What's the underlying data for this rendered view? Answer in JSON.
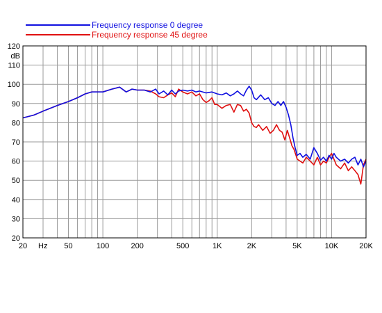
{
  "chart_data": {
    "type": "line",
    "x_scale": "log",
    "xlim": [
      20,
      20000
    ],
    "ylim": [
      20,
      120
    ],
    "ylabel": "dB",
    "xlabel": "Hz",
    "grid": true,
    "legend_position": "top",
    "x_ticks": [
      {
        "value": 20,
        "label": "20"
      },
      {
        "value": 50,
        "label": "50"
      },
      {
        "value": 100,
        "label": "100"
      },
      {
        "value": 200,
        "label": "200"
      },
      {
        "value": 500,
        "label": "500"
      },
      {
        "value": 1000,
        "label": "1K"
      },
      {
        "value": 2000,
        "label": "2K"
      },
      {
        "value": 5000,
        "label": "5K"
      },
      {
        "value": 10000,
        "label": "10K"
      },
      {
        "value": 20000,
        "label": "20K"
      }
    ],
    "y_ticks": [
      120,
      110,
      100,
      90,
      80,
      70,
      60,
      50,
      40,
      30,
      20
    ],
    "series": [
      {
        "name": "Frequency response 0 degree",
        "color": "#1010e0",
        "points": [
          [
            20,
            82.5
          ],
          [
            25,
            84
          ],
          [
            30,
            86
          ],
          [
            40,
            89
          ],
          [
            50,
            91
          ],
          [
            60,
            93
          ],
          [
            70,
            95
          ],
          [
            80,
            96
          ],
          [
            100,
            96
          ],
          [
            120,
            97.5
          ],
          [
            140,
            98.5
          ],
          [
            160,
            96
          ],
          [
            180,
            97.5
          ],
          [
            200,
            97
          ],
          [
            230,
            97
          ],
          [
            260,
            96
          ],
          [
            290,
            97.5
          ],
          [
            310,
            95
          ],
          [
            340,
            96.5
          ],
          [
            370,
            94.5
          ],
          [
            400,
            97
          ],
          [
            430,
            95
          ],
          [
            460,
            96.5
          ],
          [
            500,
            97
          ],
          [
            550,
            96.5
          ],
          [
            600,
            97
          ],
          [
            650,
            96
          ],
          [
            700,
            96.5
          ],
          [
            800,
            95.5
          ],
          [
            900,
            96
          ],
          [
            1000,
            95
          ],
          [
            1100,
            94.5
          ],
          [
            1200,
            95.5
          ],
          [
            1300,
            94
          ],
          [
            1400,
            95
          ],
          [
            1500,
            96.5
          ],
          [
            1600,
            95
          ],
          [
            1700,
            94
          ],
          [
            1800,
            97
          ],
          [
            1900,
            99
          ],
          [
            2000,
            97
          ],
          [
            2100,
            93
          ],
          [
            2200,
            92
          ],
          [
            2400,
            94.5
          ],
          [
            2600,
            92
          ],
          [
            2800,
            93
          ],
          [
            3000,
            90
          ],
          [
            3200,
            89
          ],
          [
            3400,
            91
          ],
          [
            3600,
            89
          ],
          [
            3800,
            91
          ],
          [
            4000,
            88
          ],
          [
            4200,
            84
          ],
          [
            4400,
            79
          ],
          [
            4600,
            72
          ],
          [
            4800,
            67
          ],
          [
            5000,
            63
          ],
          [
            5300,
            64
          ],
          [
            5600,
            62
          ],
          [
            6000,
            63.5
          ],
          [
            6500,
            61
          ],
          [
            7000,
            67
          ],
          [
            7500,
            64
          ],
          [
            8000,
            60.5
          ],
          [
            8500,
            62
          ],
          [
            9000,
            60
          ],
          [
            9500,
            63
          ],
          [
            10000,
            61
          ],
          [
            10500,
            64
          ],
          [
            11000,
            62
          ],
          [
            12000,
            60
          ],
          [
            13000,
            61
          ],
          [
            14000,
            59
          ],
          [
            15000,
            61
          ],
          [
            16000,
            62
          ],
          [
            17000,
            58
          ],
          [
            18000,
            61
          ],
          [
            19000,
            57
          ],
          [
            20000,
            60
          ]
        ]
      },
      {
        "name": "Frequency response 45 degree",
        "color": "#e01010",
        "points": [
          [
            20,
            82.5
          ],
          [
            25,
            84
          ],
          [
            30,
            86
          ],
          [
            40,
            89
          ],
          [
            50,
            91
          ],
          [
            60,
            93
          ],
          [
            70,
            95
          ],
          [
            80,
            96
          ],
          [
            100,
            96
          ],
          [
            120,
            97.5
          ],
          [
            140,
            98.5
          ],
          [
            160,
            96
          ],
          [
            180,
            97.5
          ],
          [
            200,
            97
          ],
          [
            230,
            97
          ],
          [
            260,
            96.5
          ],
          [
            290,
            95
          ],
          [
            310,
            93.5
          ],
          [
            340,
            93
          ],
          [
            370,
            94.5
          ],
          [
            400,
            95.5
          ],
          [
            430,
            93.5
          ],
          [
            460,
            97.5
          ],
          [
            500,
            96
          ],
          [
            550,
            95
          ],
          [
            600,
            96
          ],
          [
            650,
            94
          ],
          [
            700,
            95
          ],
          [
            750,
            92
          ],
          [
            800,
            90.5
          ],
          [
            850,
            91.5
          ],
          [
            900,
            93
          ],
          [
            950,
            89.5
          ],
          [
            1000,
            89.5
          ],
          [
            1100,
            87.5
          ],
          [
            1200,
            89
          ],
          [
            1300,
            89.5
          ],
          [
            1400,
            85.5
          ],
          [
            1500,
            89.5
          ],
          [
            1600,
            89
          ],
          [
            1700,
            86
          ],
          [
            1800,
            87
          ],
          [
            1900,
            85
          ],
          [
            2000,
            80
          ],
          [
            2100,
            78
          ],
          [
            2200,
            77.5
          ],
          [
            2300,
            79
          ],
          [
            2500,
            76
          ],
          [
            2700,
            78
          ],
          [
            2900,
            74.5
          ],
          [
            3100,
            76
          ],
          [
            3300,
            79
          ],
          [
            3500,
            76
          ],
          [
            3700,
            75
          ],
          [
            3900,
            71
          ],
          [
            4100,
            76
          ],
          [
            4300,
            72
          ],
          [
            4500,
            68
          ],
          [
            4700,
            66
          ],
          [
            5000,
            61
          ],
          [
            5300,
            60
          ],
          [
            5600,
            59
          ],
          [
            6000,
            62
          ],
          [
            6500,
            60
          ],
          [
            7000,
            58
          ],
          [
            7500,
            62
          ],
          [
            8000,
            58
          ],
          [
            8500,
            60
          ],
          [
            9000,
            59
          ],
          [
            9500,
            62
          ],
          [
            10000,
            64
          ],
          [
            11000,
            58
          ],
          [
            12000,
            56
          ],
          [
            13000,
            59
          ],
          [
            14000,
            55
          ],
          [
            15000,
            57
          ],
          [
            16000,
            55
          ],
          [
            17000,
            53
          ],
          [
            18000,
            48
          ],
          [
            19000,
            58
          ],
          [
            20000,
            61
          ]
        ]
      }
    ]
  }
}
